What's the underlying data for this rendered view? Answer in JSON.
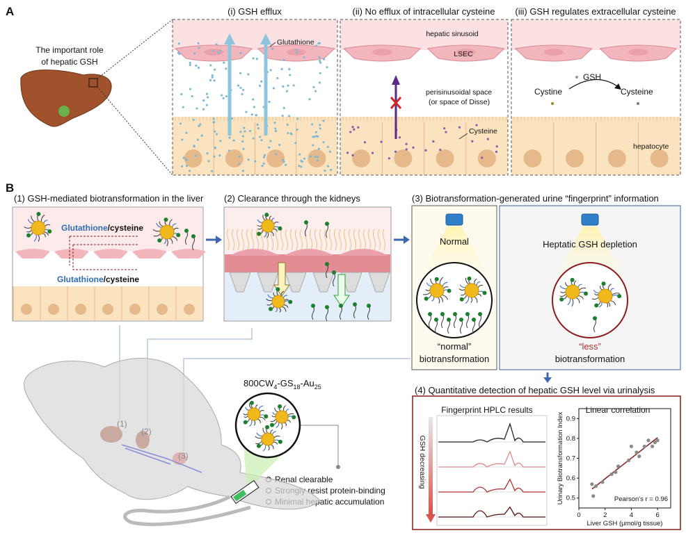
{
  "panel_a": {
    "label": "A",
    "intro": [
      "The important role",
      "of hepatic GSH"
    ],
    "panels": [
      {
        "title": "(i) GSH efflux",
        "labels": [
          "Glutathione"
        ]
      },
      {
        "title": "(ii) No efflux of intracellular cysteine",
        "labels": [
          "hepatic sinusoid",
          "LSEC",
          "perisinusoidal space",
          "(or space of Disse)",
          "Cysteine"
        ]
      },
      {
        "title": "(iii) GSH regulates extracellular cysteine",
        "labels": [
          "GSH",
          "Cystine",
          "Cysteine",
          "hepatocyte"
        ]
      }
    ]
  },
  "panel_b": {
    "label": "B",
    "step1": {
      "title": "(1) GSH-mediated biotransformation in the liver",
      "top": [
        "Glutathione",
        "/cysteine"
      ],
      "bottom": [
        "Glutathione",
        "/cysteine"
      ]
    },
    "step2": {
      "title": "(2) Clearance through the kidneys"
    },
    "step3": {
      "title": "(3) Biotransformation-generated urine “fingerprint” information",
      "normal": {
        "heading": "Normal",
        "caption": [
          "“normal”",
          "biotransformation"
        ]
      },
      "depletion": {
        "heading": "Heptatic GSH depletion",
        "caption": [
          "“less”",
          "biotransformation"
        ]
      }
    },
    "probe": {
      "name": [
        "800CW",
        "4",
        "-GS",
        "18",
        "-Au",
        "25"
      ],
      "features": [
        "Renal clearable",
        "Strongly resist protein-binding",
        "Minimal hepatic accumulation"
      ]
    },
    "mouse_labels": [
      "(1)",
      "(2)",
      "(3)"
    ],
    "step4": {
      "title": "(4) Quantitative detection of hepatic GSH level via urinalysis",
      "hplc": {
        "title": "Fingerprint HPLC results",
        "axis_label": "GSH decreasing"
      },
      "correlation": {
        "type": "scatter",
        "title": "Linear correlation",
        "x_label": "Liver GSH (μmol/g tissue)",
        "y_label": "Urinary Biotransformation Index",
        "annotation": "Pearson's r = 0.96",
        "x": [
          1.0,
          1.1,
          1.3,
          1.8,
          2.5,
          2.8,
          3.0,
          3.8,
          4.0,
          4.4,
          4.6,
          5.0,
          5.3,
          5.6,
          5.8,
          6.0
        ],
        "y": [
          0.57,
          0.51,
          0.56,
          0.58,
          0.62,
          0.63,
          0.66,
          0.69,
          0.76,
          0.73,
          0.71,
          0.76,
          0.79,
          0.76,
          0.78,
          0.79
        ],
        "color": "#8a8a8a",
        "fit_color": "#8b1a1a",
        "xlim": [
          0,
          7
        ],
        "ylim": [
          0.45,
          0.95
        ],
        "xticks": [
          0,
          2,
          4,
          6
        ],
        "yticks": [
          0.5,
          0.6,
          0.7,
          0.8,
          0.9
        ]
      }
    }
  }
}
